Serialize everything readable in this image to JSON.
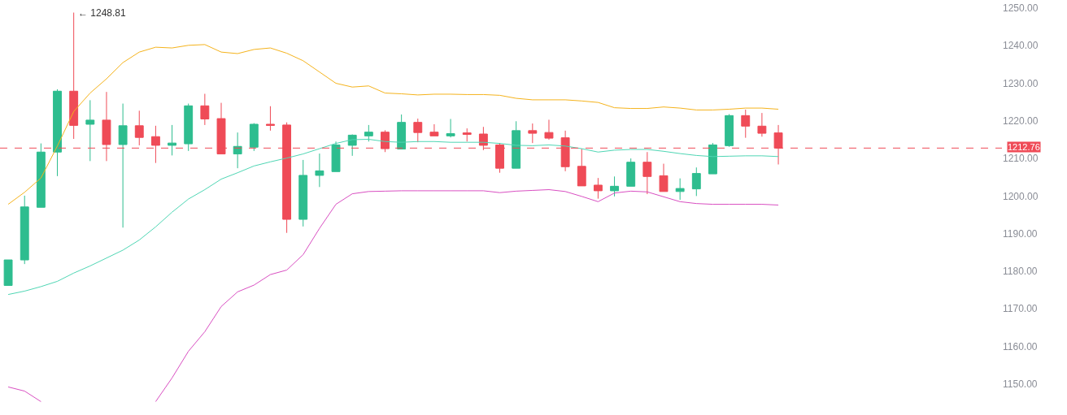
{
  "chart_data": {
    "type": "candlestick",
    "categories": [
      null,
      null,
      null,
      null,
      null,
      null,
      null,
      null,
      null,
      null,
      null,
      null,
      null,
      null,
      null,
      null,
      null,
      null,
      null,
      null,
      null,
      null,
      null,
      null,
      null,
      null,
      null,
      null,
      null,
      null,
      null,
      null,
      null,
      null,
      null,
      null,
      null,
      null,
      null,
      null,
      null,
      null,
      null,
      null,
      null,
      null,
      null,
      null
    ],
    "ohlc": [
      [
        1176.2,
        1183.0,
        1176.2,
        1183.0
      ],
      [
        1183.0,
        1200.1,
        1181.9,
        1197.1
      ],
      [
        1197.0,
        1214.0,
        1197.0,
        1211.7
      ],
      [
        1211.7,
        1228.4,
        1205.3,
        1227.9
      ],
      [
        1227.9,
        1248.81,
        1215.2,
        1218.8
      ],
      [
        1219.1,
        1225.5,
        1209.3,
        1220.2
      ],
      [
        1220.2,
        1227.7,
        1209.3,
        1213.7
      ],
      [
        1213.7,
        1224.6,
        1191.6,
        1218.7
      ],
      [
        1218.7,
        1222.7,
        1213.5,
        1215.6
      ],
      [
        1215.8,
        1218.7,
        1208.8,
        1213.5
      ],
      [
        1213.5,
        1218.9,
        1210.8,
        1214.1
      ],
      [
        1213.9,
        1224.6,
        1212.0,
        1224.0
      ],
      [
        1224.0,
        1227.2,
        1218.9,
        1220.5
      ],
      [
        1220.6,
        1224.8,
        1211.2,
        1211.2
      ],
      [
        1211.2,
        1216.9,
        1207.4,
        1213.2
      ],
      [
        1213.0,
        1219.4,
        1212.0,
        1219.1
      ],
      [
        1219.1,
        1223.9,
        1217.4,
        1218.8
      ],
      [
        1218.9,
        1219.6,
        1190.2,
        1193.8
      ],
      [
        1193.8,
        1209.6,
        1191.9,
        1205.5
      ],
      [
        1205.5,
        1211.3,
        1202.4,
        1206.7
      ],
      [
        1206.5,
        1214.5,
        1206.5,
        1213.6
      ],
      [
        1213.5,
        1216.4,
        1210.7,
        1216.2
      ],
      [
        1216.0,
        1218.9,
        1214.5,
        1217.0
      ],
      [
        1217.0,
        1217.5,
        1211.7,
        1212.6
      ],
      [
        1212.5,
        1221.7,
        1212.5,
        1219.6
      ],
      [
        1219.6,
        1220.6,
        1214.3,
        1216.9
      ],
      [
        1217.0,
        1219.1,
        1216.0,
        1216.0
      ],
      [
        1216.0,
        1220.5,
        1215.6,
        1216.6
      ],
      [
        1216.8,
        1218.0,
        1214.5,
        1216.4
      ],
      [
        1216.5,
        1218.4,
        1212.2,
        1213.5
      ],
      [
        1213.6,
        1214.1,
        1206.2,
        1207.4
      ],
      [
        1207.4,
        1219.9,
        1207.4,
        1217.4
      ],
      [
        1217.4,
        1219.3,
        1214.1,
        1216.7
      ],
      [
        1216.9,
        1220.3,
        1215.0,
        1215.4
      ],
      [
        1215.5,
        1217.4,
        1206.6,
        1207.8
      ],
      [
        1207.9,
        1212.6,
        1202.7,
        1202.7
      ],
      [
        1202.9,
        1204.8,
        1199.3,
        1201.4
      ],
      [
        1201.4,
        1205.2,
        1199.9,
        1202.6
      ],
      [
        1202.6,
        1210.0,
        1202.6,
        1209.0
      ],
      [
        1209.0,
        1211.7,
        1200.5,
        1205.2
      ],
      [
        1205.4,
        1208.6,
        1201.2,
        1201.2
      ],
      [
        1201.2,
        1204.7,
        1199.0,
        1202.0
      ],
      [
        1201.9,
        1207.6,
        1200.0,
        1206.0
      ],
      [
        1205.9,
        1214.1,
        1205.9,
        1213.6
      ],
      [
        1213.4,
        1221.8,
        1213.1,
        1221.4
      ],
      [
        1221.4,
        1223.0,
        1215.5,
        1218.6
      ],
      [
        1218.6,
        1222.1,
        1215.8,
        1216.7
      ],
      [
        1216.8,
        1218.9,
        1208.4,
        1212.76
      ]
    ],
    "colors": [
      "#2ebd8f",
      "#2ebd8f",
      "#2ebd8f",
      "#2ebd8f",
      "#ef4b57",
      "#2ebd8f",
      "#ef4b57",
      "#2ebd8f",
      "#ef4b57",
      "#ef4b57",
      "#2ebd8f",
      "#2ebd8f",
      "#ef4b57",
      "#ef4b57",
      "#2ebd8f",
      "#2ebd8f",
      "#ef4b57",
      "#ef4b57",
      "#2ebd8f",
      "#2ebd8f",
      "#2ebd8f",
      "#2ebd8f",
      "#2ebd8f",
      "#ef4b57",
      "#2ebd8f",
      "#ef4b57",
      "#ef4b57",
      "#2ebd8f",
      "#ef4b57",
      "#ef4b57",
      "#ef4b57",
      "#2ebd8f",
      "#ef4b57",
      "#ef4b57",
      "#ef4b57",
      "#ef4b57",
      "#ef4b57",
      "#2ebd8f",
      "#2ebd8f",
      "#ef4b57",
      "#ef4b57",
      "#2ebd8f",
      "#2ebd8f",
      "#2ebd8f",
      "#2ebd8f",
      "#ef4b57",
      "#ef4b57",
      "#ef4b57"
    ],
    "series": [
      {
        "type": "line",
        "color": "#f5b31c",
        "values": [
          1197.8,
          1201.0,
          1204.8,
          1213.3,
          1222.5,
          1227.4,
          1231.2,
          1235.5,
          1238.3,
          1239.6,
          1239.4,
          1240.1,
          1240.3,
          1238.3,
          1237.9,
          1239.0,
          1239.4,
          1238.0,
          1236.0,
          1233.0,
          1230.0,
          1229.0,
          1229.3,
          1227.4,
          1227.2,
          1226.9,
          1227.1,
          1227.1,
          1227.0,
          1227.0,
          1226.8,
          1226.0,
          1225.6,
          1225.6,
          1225.6,
          1225.3,
          1224.9,
          1223.5,
          1223.3,
          1223.3,
          1223.7,
          1223.4,
          1222.9,
          1222.9,
          1223.1,
          1223.4,
          1223.4,
          1223.1
        ]
      },
      {
        "type": "line",
        "color": "#4fd6b4",
        "values": [
          1173.8,
          1174.7,
          1175.9,
          1177.3,
          1179.5,
          1181.4,
          1183.5,
          1185.6,
          1188.3,
          1191.8,
          1195.7,
          1199.2,
          1201.7,
          1204.5,
          1206.2,
          1208.0,
          1209.1,
          1210.1,
          1211.2,
          1212.6,
          1214.0,
          1215.0,
          1215.1,
          1214.5,
          1214.3,
          1214.5,
          1214.5,
          1214.3,
          1214.3,
          1214.3,
          1214.0,
          1213.5,
          1213.4,
          1213.6,
          1213.3,
          1212.6,
          1211.7,
          1212.2,
          1212.4,
          1212.4,
          1211.9,
          1211.3,
          1210.8,
          1210.5,
          1210.6,
          1210.7,
          1210.7,
          1210.5
        ]
      },
      {
        "type": "line",
        "color": "#d94fc2",
        "values": [
          1149.2,
          1148.1,
          1145.3,
          null,
          null,
          null,
          null,
          null,
          null,
          1145.3,
          1151.6,
          1158.7,
          1163.9,
          1170.6,
          1174.5,
          1176.3,
          1179.1,
          1180.3,
          1184.4,
          1191.4,
          1197.8,
          1200.6,
          1201.2,
          1201.3,
          1201.4,
          1201.4,
          1201.4,
          1201.4,
          1201.4,
          1201.4,
          1200.9,
          1201.3,
          1201.5,
          1201.7,
          1201.2,
          1199.9,
          1198.5,
          1200.8,
          1201.3,
          1201.1,
          1199.8,
          1198.5,
          1198.0,
          1197.8,
          1197.8,
          1197.8,
          1197.8,
          1197.6
        ]
      }
    ],
    "ylim": [
      1142.6,
      1250
    ],
    "yticks": [
      {
        "value": 1150,
        "label": "1150.00"
      },
      {
        "value": 1160,
        "label": "1160.00"
      },
      {
        "value": 1170,
        "label": "1170.00"
      },
      {
        "value": 1180,
        "label": "1180.00"
      },
      {
        "value": 1190,
        "label": "1190.00"
      },
      {
        "value": 1200,
        "label": "1200.00"
      },
      {
        "value": 1210,
        "label": "1210.00"
      },
      {
        "value": 1220,
        "label": "1220.00"
      },
      {
        "value": 1230,
        "label": "1230.00"
      },
      {
        "value": 1240,
        "label": "1240.00"
      },
      {
        "value": 1250,
        "label": "1250.00"
      }
    ],
    "ref_lines": [
      {
        "axis": "y",
        "value": 1212.76,
        "label": "1212.76",
        "color": "#ef4b57",
        "line_style": "dashed"
      }
    ],
    "annotations": [
      "← 1248.81"
    ],
    "tick_labels": "y"
  }
}
